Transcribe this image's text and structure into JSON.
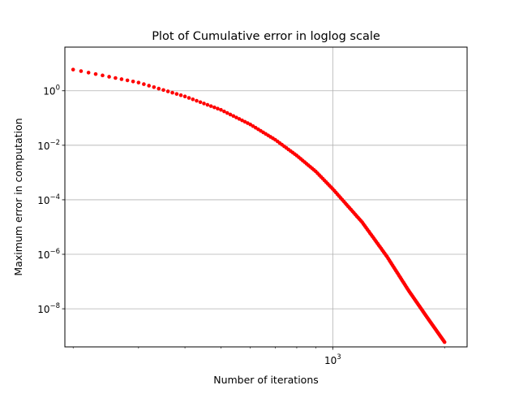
{
  "chart_data": {
    "type": "scatter",
    "title": "Plot of Cumulative error in loglog scale",
    "xlabel": "Number of iterations",
    "ylabel": "Maximum error in computation",
    "xscale": "log",
    "yscale": "log",
    "xlim": [
      190,
      2300
    ],
    "ylim": [
      4e-10,
      40
    ],
    "x_ticks": [
      {
        "value": 1000,
        "base": "10",
        "exp": "3"
      }
    ],
    "y_ticks": [
      {
        "value": 1,
        "base": "10",
        "exp": "0"
      },
      {
        "value": 0.01,
        "base": "10",
        "exp": "−2"
      },
      {
        "value": 0.0001,
        "base": "10",
        "exp": "−4"
      },
      {
        "value": 1e-06,
        "base": "10",
        "exp": "−6"
      },
      {
        "value": 1e-08,
        "base": "10",
        "exp": "−8"
      }
    ],
    "x_minor_ticks": [
      200,
      300,
      400,
      500,
      600,
      700,
      800,
      900,
      2000
    ],
    "grid": true,
    "marker_color": "#ff0000",
    "series": [
      {
        "x_range": [
          200,
          2000
        ],
        "x_step": 10,
        "curve_points": [
          [
            200,
            6.0
          ],
          [
            300,
            2.0
          ],
          [
            400,
            0.62
          ],
          [
            500,
            0.2
          ],
          [
            600,
            0.058
          ],
          [
            700,
            0.016
          ],
          [
            800,
            0.0042
          ],
          [
            900,
            0.0011
          ],
          [
            1000,
            0.00025
          ],
          [
            1200,
            1.5e-05
          ],
          [
            1400,
            8.2e-07
          ],
          [
            1600,
            4.7e-08
          ],
          [
            1800,
            4.6e-09
          ],
          [
            2000,
            6e-10
          ]
        ]
      }
    ]
  }
}
